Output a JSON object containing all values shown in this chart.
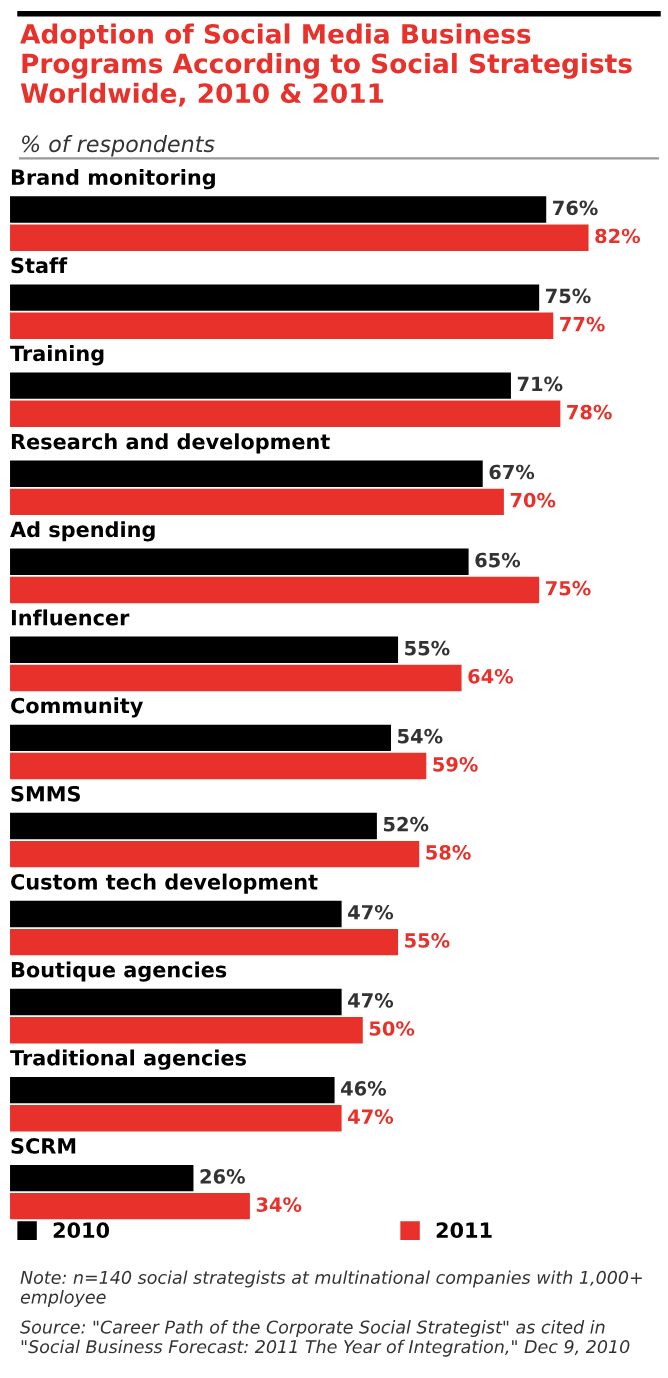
{
  "chart_data": {
    "type": "bar",
    "orientation": "horizontal",
    "title": "Adoption of Social Media Business Programs According to Social Strategists Worldwide, 2010 & 2011",
    "subtitle": "% of respondents",
    "categories": [
      "Brand monitoring",
      "Staff",
      "Training",
      "Research and development",
      "Ad spending",
      "Influencer",
      "Community",
      "SMMS",
      "Custom tech development",
      "Boutique agencies",
      "Traditional agencies",
      "SCRM"
    ],
    "series": [
      {
        "name": "2010",
        "color": "#000000",
        "values": [
          76,
          75,
          71,
          67,
          65,
          55,
          54,
          52,
          47,
          47,
          46,
          26
        ],
        "value_labels": [
          "76%",
          "75%",
          "71%",
          "67%",
          "65%",
          "55%",
          "54%",
          "52%",
          "47%",
          "47%",
          "46%",
          "26%"
        ]
      },
      {
        "name": "2011",
        "color": "#e8312a",
        "values": [
          82,
          77,
          78,
          70,
          75,
          64,
          59,
          58,
          55,
          50,
          47,
          34
        ],
        "value_labels": [
          "82%",
          "77%",
          "78%",
          "70%",
          "75%",
          "64%",
          "59%",
          "58%",
          "55%",
          "50%",
          "47%",
          "34%"
        ]
      }
    ],
    "legend": "bottom",
    "annotations": [
      "Note: n=140 social strategists at multinational companies with 1,000+ employee",
      "Source: \"Career Path of the Corporate Social Strategist\" as cited in \"Social Business Forecast: 2011 The Year of Integration,\" Dec 9, 2010"
    ]
  }
}
